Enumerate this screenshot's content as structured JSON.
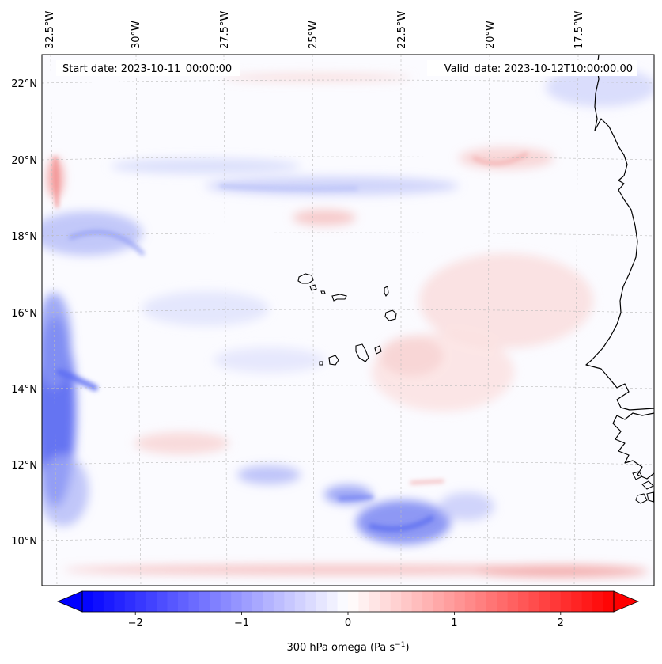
{
  "header": {
    "start_date": "Start date: 2023-10-11_00:00:00",
    "valid_date": "Valid_date: 2023-10-12T10:00:00.00"
  },
  "lon_labels": [
    "32.5°W",
    "30°W",
    "27.5°W",
    "25°W",
    "22.5°W",
    "20°W",
    "17.5°W"
  ],
  "lat_labels": [
    "22°N",
    "20°N",
    "18°N",
    "16°N",
    "14°N",
    "12°N",
    "10°N"
  ],
  "colorbar": {
    "ticks": [
      "−2",
      "−1",
      "0",
      "1",
      "2"
    ],
    "tick_values": [
      -2,
      -1,
      0,
      1,
      2
    ],
    "range": [
      -2.5,
      2.5
    ],
    "label": "300 hPa omega (Pa s",
    "label_exp": "−1",
    "label_end": ")",
    "cmap": "bwr"
  },
  "colors": {
    "negative": "#0000ff",
    "zero": "#ffffff",
    "positive": "#ff0000",
    "coast": "#000000",
    "grid": "#bbbbbb"
  }
}
